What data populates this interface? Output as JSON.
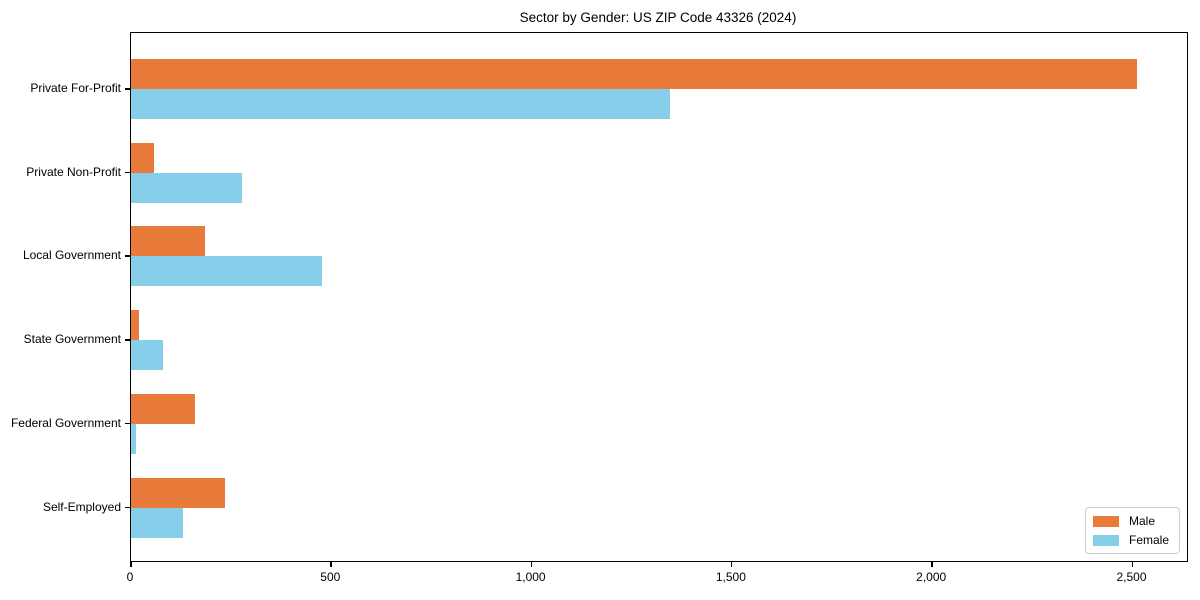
{
  "chart_data": {
    "type": "bar",
    "orientation": "horizontal",
    "title": "Sector by Gender: US ZIP Code 43326 (2024)",
    "categories": [
      "Private For-Profit",
      "Private Non-Profit",
      "Local Government",
      "State Government",
      "Federal Government",
      "Self-Employed"
    ],
    "series": [
      {
        "name": "Male",
        "color": "#e87a3a",
        "values": [
          2510,
          58,
          185,
          20,
          160,
          235
        ]
      },
      {
        "name": "Female",
        "color": "#87ceeb",
        "values": [
          1345,
          278,
          477,
          79,
          12,
          129
        ]
      }
    ],
    "xlabel": "",
    "ylabel": "",
    "xlim": [
      0,
      2636
    ],
    "xticks": [
      0,
      500,
      1000,
      1500,
      2000,
      2500
    ],
    "xtick_labels": [
      "0",
      "500",
      "1,000",
      "1,500",
      "2,000",
      "2,500"
    ],
    "grid": false,
    "legend_position": "lower right",
    "plot_background": "#ffffff",
    "axis_color": "#000000"
  }
}
